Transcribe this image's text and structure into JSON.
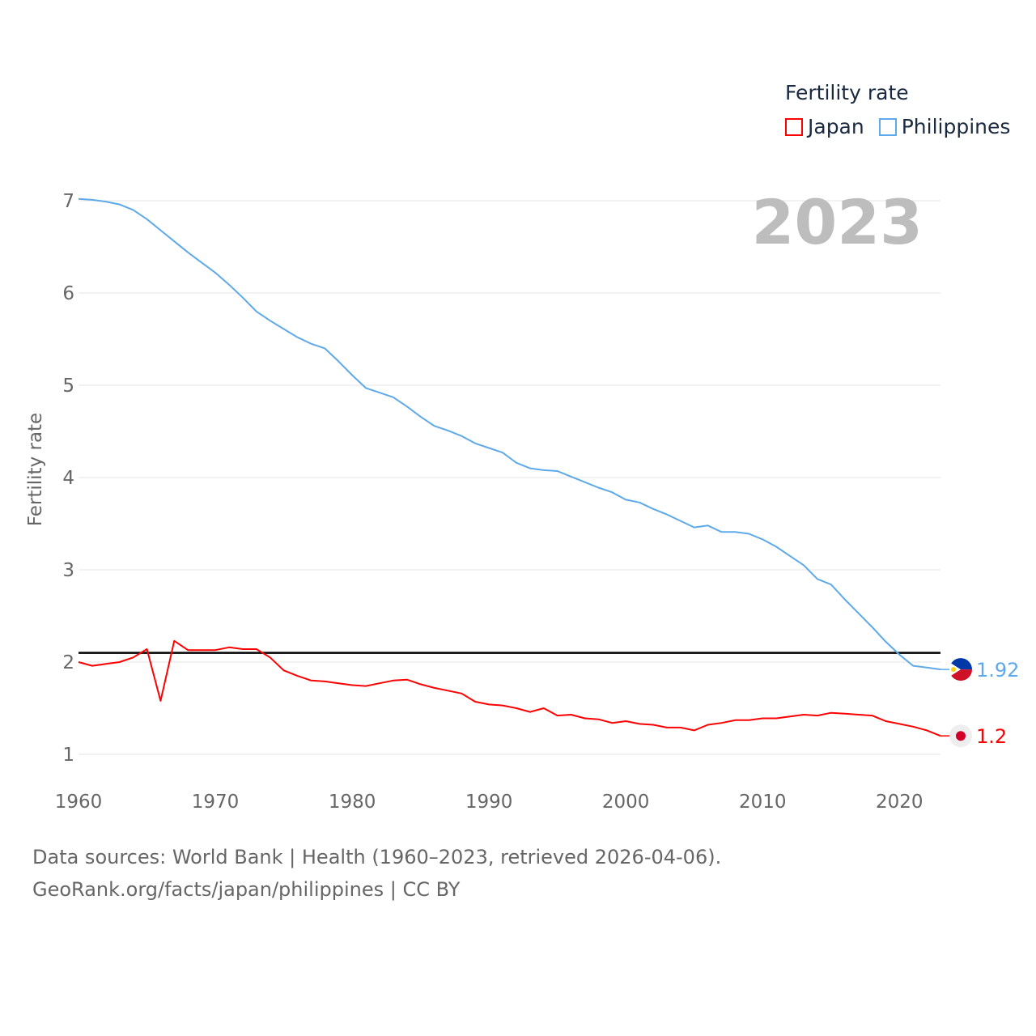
{
  "chart_data": {
    "type": "line",
    "title": "",
    "xlabel": "",
    "ylabel": "Fertility rate",
    "xlim": [
      1960,
      2023
    ],
    "ylim": [
      0.8,
      7.1
    ],
    "yticks": [
      1,
      2,
      3,
      4,
      5,
      6,
      7
    ],
    "xticks": [
      1960,
      1970,
      1980,
      1990,
      2000,
      2010,
      2020
    ],
    "grid": true,
    "legend_title": "Fertility rate",
    "legend_placement": "top-right",
    "current_year_label": "2023",
    "reference_line": 2.1,
    "x": [
      1960,
      1961,
      1962,
      1963,
      1964,
      1965,
      1966,
      1967,
      1968,
      1969,
      1970,
      1971,
      1972,
      1973,
      1974,
      1975,
      1976,
      1977,
      1978,
      1979,
      1980,
      1981,
      1982,
      1983,
      1984,
      1985,
      1986,
      1987,
      1988,
      1989,
      1990,
      1991,
      1992,
      1993,
      1994,
      1995,
      1996,
      1997,
      1998,
      1999,
      2000,
      2001,
      2002,
      2003,
      2004,
      2005,
      2006,
      2007,
      2008,
      2009,
      2010,
      2011,
      2012,
      2013,
      2014,
      2015,
      2016,
      2017,
      2018,
      2019,
      2020,
      2021,
      2022,
      2023
    ],
    "series": [
      {
        "name": "Japan",
        "color": "#ff0000",
        "end_label": "1.2",
        "values": [
          2.0,
          1.96,
          1.98,
          2.0,
          2.05,
          2.14,
          1.58,
          2.23,
          2.13,
          2.13,
          2.13,
          2.16,
          2.14,
          2.14,
          2.05,
          1.91,
          1.85,
          1.8,
          1.79,
          1.77,
          1.75,
          1.74,
          1.77,
          1.8,
          1.81,
          1.76,
          1.72,
          1.69,
          1.66,
          1.57,
          1.54,
          1.53,
          1.5,
          1.46,
          1.5,
          1.42,
          1.43,
          1.39,
          1.38,
          1.34,
          1.36,
          1.33,
          1.32,
          1.29,
          1.29,
          1.26,
          1.32,
          1.34,
          1.37,
          1.37,
          1.39,
          1.39,
          1.41,
          1.43,
          1.42,
          1.45,
          1.44,
          1.43,
          1.42,
          1.36,
          1.33,
          1.3,
          1.26,
          1.2
        ]
      },
      {
        "name": "Philippines",
        "color": "#5da9ea",
        "end_label": "1.92",
        "values": [
          7.02,
          7.01,
          6.99,
          6.96,
          6.9,
          6.8,
          6.68,
          6.56,
          6.44,
          6.33,
          6.22,
          6.09,
          5.95,
          5.8,
          5.7,
          5.61,
          5.52,
          5.45,
          5.4,
          5.26,
          5.11,
          4.97,
          4.92,
          4.87,
          4.77,
          4.66,
          4.56,
          4.51,
          4.45,
          4.37,
          4.32,
          4.27,
          4.16,
          4.1,
          4.08,
          4.07,
          4.01,
          3.95,
          3.89,
          3.84,
          3.76,
          3.73,
          3.66,
          3.6,
          3.53,
          3.46,
          3.48,
          3.41,
          3.41,
          3.39,
          3.33,
          3.25,
          3.15,
          3.05,
          2.9,
          2.84,
          2.68,
          2.53,
          2.38,
          2.22,
          2.08,
          1.96,
          1.94,
          1.92
        ]
      }
    ]
  },
  "footer": {
    "line1": "Data sources: World Bank | Health (1960–2023, retrieved 2026-04-06).",
    "line2": "GeoRank.org/facts/japan/philippines | CC BY"
  }
}
